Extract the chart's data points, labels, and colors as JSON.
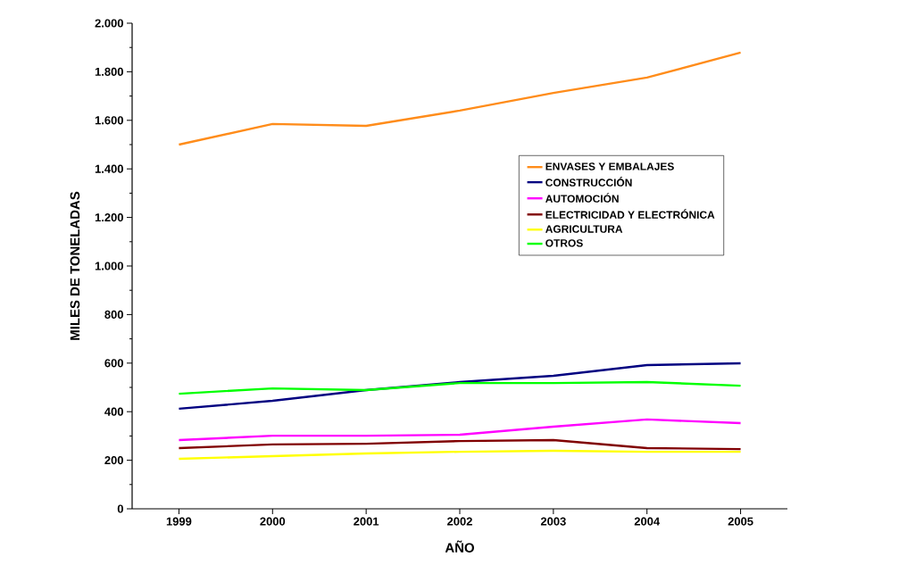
{
  "chart_data": {
    "type": "line",
    "xlabel": "AÑO",
    "ylabel": "MILES DE TONELADAS",
    "x": [
      1999,
      2000,
      2001,
      2002,
      2003,
      2004,
      2005
    ],
    "series": [
      {
        "name": "ENVASES Y EMBALAJES",
        "color": "#ff8c1a",
        "values": [
          1500,
          1585,
          1577,
          1640,
          1713,
          1776,
          1879
        ]
      },
      {
        "name": "CONSTRUCCIÓN",
        "color": "#000080",
        "values": [
          412,
          445,
          489,
          522,
          548,
          592,
          599
        ]
      },
      {
        "name": "AUTOMOCIÓN",
        "color": "#ff00ff",
        "values": [
          283,
          301,
          301,
          305,
          338,
          368,
          353
        ]
      },
      {
        "name": "ELECTRICIDAD Y ELECTRÓNICA",
        "color": "#800000",
        "values": [
          250,
          265,
          268,
          279,
          283,
          250,
          246
        ]
      },
      {
        "name": "AGRICULTURA",
        "color": "#ffff00",
        "values": [
          206,
          217,
          228,
          235,
          239,
          235,
          235
        ]
      },
      {
        "name": "OTROS",
        "color": "#00ff00",
        "values": [
          474,
          496,
          489,
          518,
          518,
          522,
          507
        ]
      }
    ],
    "xlim": [
      1998.5,
      2005.5
    ],
    "ylim": [
      0,
      2000
    ],
    "xticks": [
      1999,
      2000,
      2001,
      2002,
      2003,
      2004,
      2005
    ],
    "yticks": [
      {
        "value": 0,
        "label": "0"
      },
      {
        "value": 200,
        "label": "200"
      },
      {
        "value": 400,
        "label": "400"
      },
      {
        "value": 600,
        "label": "600"
      },
      {
        "value": 800,
        "label": "800"
      },
      {
        "value": 1000,
        "label": "1.000"
      },
      {
        "value": 1200,
        "label": "1.200"
      },
      {
        "value": 1400,
        "label": "1.400"
      },
      {
        "value": 1600,
        "label": "1.600"
      },
      {
        "value": 1800,
        "label": "1.800"
      },
      {
        "value": 2000,
        "label": "2.000"
      }
    ],
    "legend": "right",
    "grid": false,
    "marker": "none",
    "line_style": "solid"
  }
}
